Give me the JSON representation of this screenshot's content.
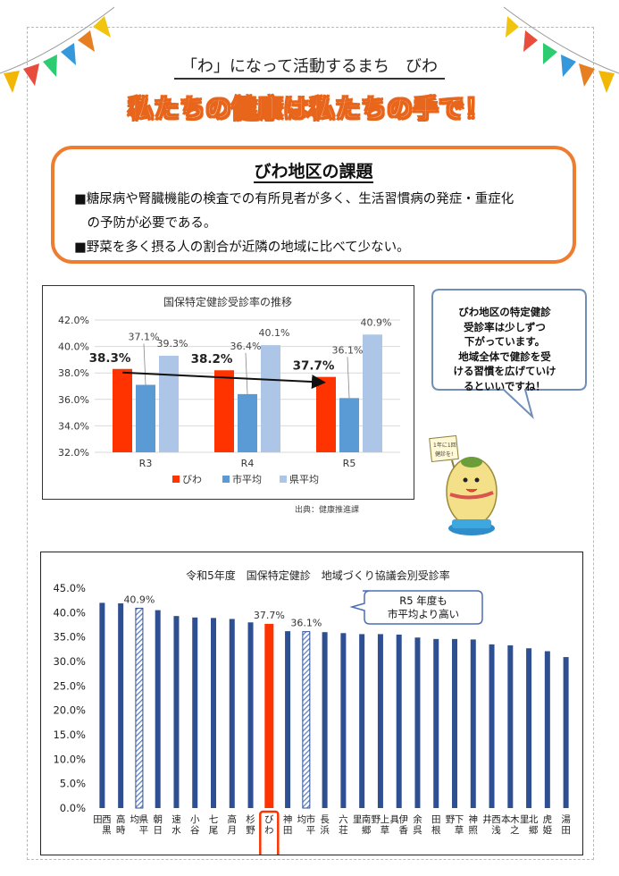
{
  "header": {
    "subtitle": "「わ」になって活動するまち　びわ",
    "title": "私たちの健康は私たちの手で！"
  },
  "issues": {
    "heading": "びわ地区の課題",
    "lines": [
      "■糖尿病や腎臓機能の検査での有所見者が多く、生活習慣病の発症・重症化",
      "　の予防が必要である。",
      "■野菜を多く摂る人の割合が近隣の地域に比べて少ない。"
    ]
  },
  "comment": {
    "lines": [
      "びわ地区の特定健診",
      "受診率は少しずつ",
      "下がっています。",
      "地域全体で健診を受",
      "ける習慣を広げていけ",
      "るといいですね！"
    ]
  },
  "mascot": {
    "sign_text": "1年に1回健診を!"
  },
  "source": "出典：健康推進課",
  "colors": {
    "orange": "#ee7d31",
    "biwa": "#ff3300",
    "city": "#5b9bd5",
    "pref": "#adc5e7",
    "navy": "#2f4f93"
  },
  "chart_data": [
    {
      "type": "bar",
      "title": "国保特定健診受診率の推移",
      "categories": [
        "R3",
        "R4",
        "R5"
      ],
      "series": [
        {
          "name": "びわ",
          "values": [
            38.3,
            38.2,
            37.7
          ],
          "labels": [
            "38.3%",
            "38.2%",
            "37.7%"
          ]
        },
        {
          "name": "市平均",
          "values": [
            37.1,
            36.4,
            36.1
          ],
          "labels": [
            "37.1%",
            "36.4%",
            "36.1%"
          ]
        },
        {
          "name": "県平均",
          "values": [
            39.3,
            40.1,
            40.9
          ],
          "labels": [
            "39.3%",
            "40.1%",
            "40.9%"
          ]
        }
      ],
      "ylim": [
        32,
        42
      ],
      "yticks": [
        "32.0%",
        "34.0%",
        "36.0%",
        "38.0%",
        "40.0%",
        "42.0%"
      ],
      "trend_arrow": "びわ R3→R5",
      "legend": "bottom"
    },
    {
      "type": "bar",
      "title": "令和5年度　国保特定健診　地域づくり協議会別受診率",
      "categories": [
        "西黒田",
        "高時",
        "県平均",
        "朝日",
        "速水",
        "小谷",
        "七尾",
        "高月",
        "杉野",
        "びわ",
        "神田",
        "市平均",
        "長浜",
        "六荘",
        "南郷里",
        "上草野",
        "伊香具",
        "余呉",
        "田根",
        "下草野",
        "神照",
        "西浅井",
        "木之本",
        "北郷里",
        "虎姫",
        "湯田"
      ],
      "values": [
        42.0,
        41.9,
        40.9,
        40.5,
        39.3,
        39.0,
        38.9,
        38.7,
        38.0,
        37.7,
        36.2,
        36.1,
        36.0,
        35.8,
        35.6,
        35.6,
        35.5,
        34.9,
        34.6,
        34.6,
        34.5,
        33.5,
        33.3,
        32.7,
        32.1,
        30.9
      ],
      "highlight": {
        "びわ": "37.7%",
        "県平均": "40.9%",
        "市平均": "36.1%"
      },
      "callout": [
        "R5 年度も",
        "市平均より高い"
      ],
      "ylim": [
        0,
        45
      ],
      "yticks": [
        "0.0%",
        "5.0%",
        "10.0%",
        "15.0%",
        "20.0%",
        "25.0%",
        "30.0%",
        "35.0%",
        "40.0%",
        "45.0%"
      ]
    }
  ]
}
